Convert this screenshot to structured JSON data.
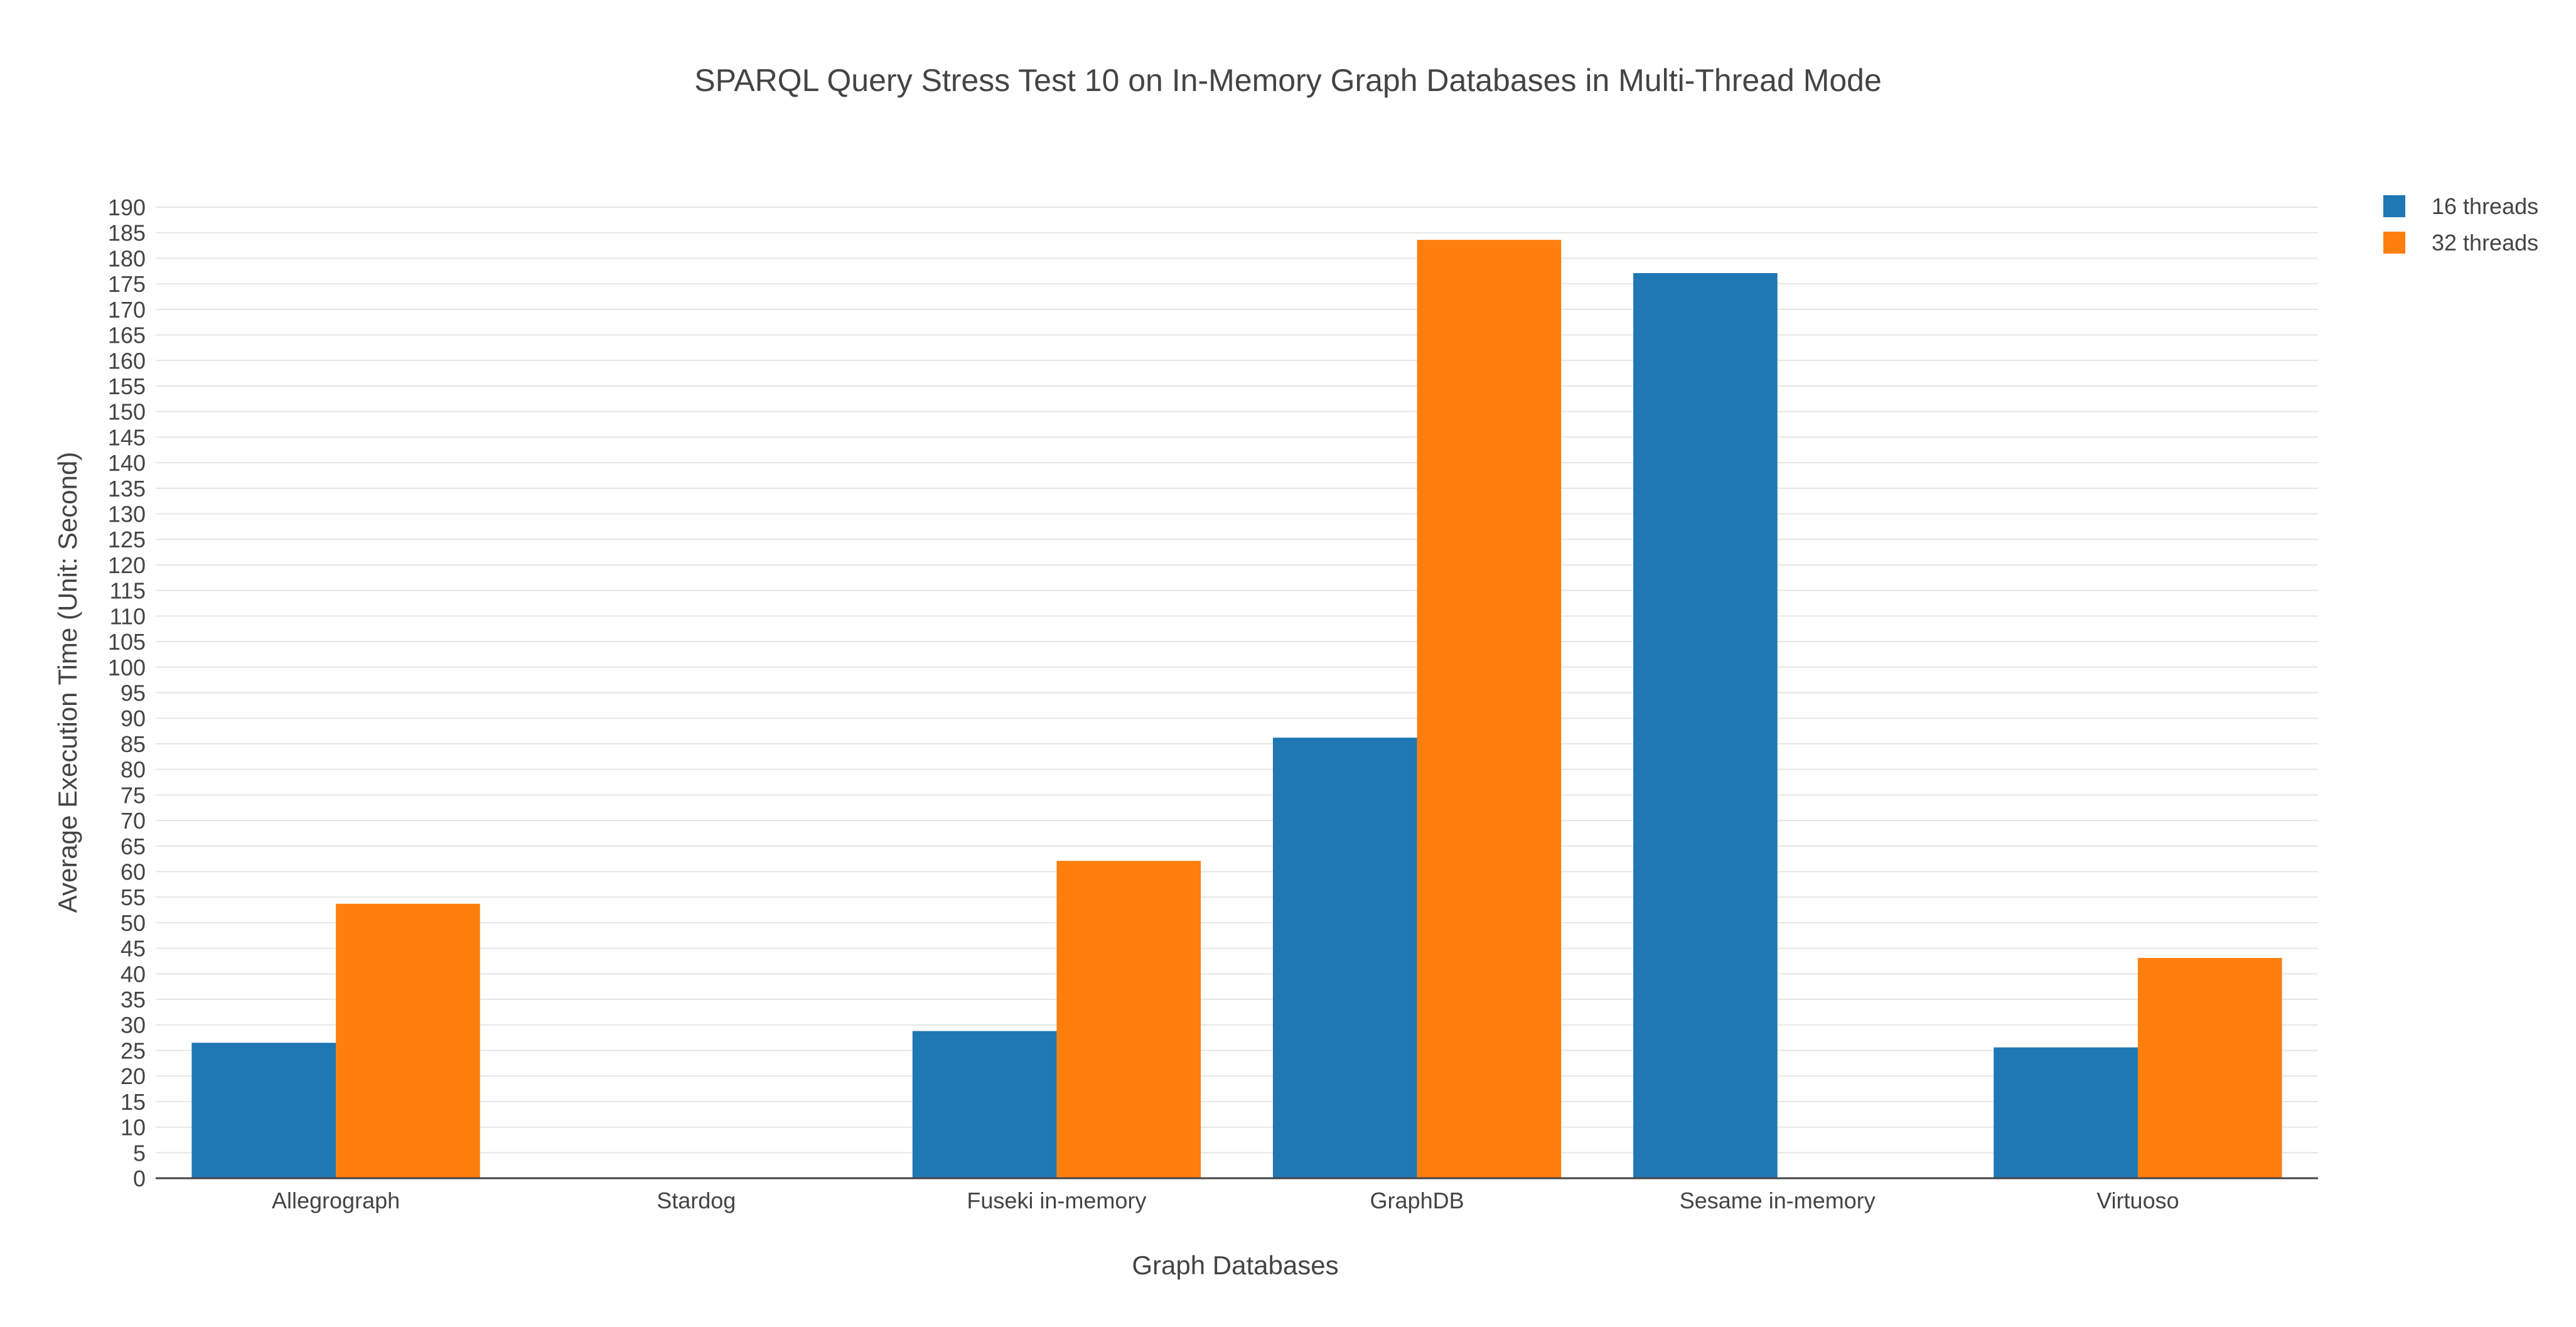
{
  "chart_data": {
    "type": "bar",
    "title": "SPARQL Query Stress Test 10 on In-Memory Graph Databases in Multi-Thread Mode",
    "xlabel": "Graph Databases",
    "ylabel": "Average Execution Time (Unit: Second)",
    "categories": [
      "Allegrograph",
      "Stardog",
      "Fuseki in-memory",
      "GraphDB",
      "Sesame in-memory",
      "Virtuoso"
    ],
    "series": [
      {
        "name": "16 threads",
        "color": "#1f77b4",
        "values": [
          26.5,
          0,
          28.8,
          86.2,
          177.1,
          25.6
        ]
      },
      {
        "name": "32 threads",
        "color": "#ff7f0e",
        "values": [
          53.7,
          0,
          62.1,
          183.6,
          0,
          43.1
        ]
      }
    ],
    "ylim": [
      0,
      190
    ],
    "ytick_step": 5,
    "grid": true,
    "legend": "top-right",
    "barmode": "group"
  }
}
